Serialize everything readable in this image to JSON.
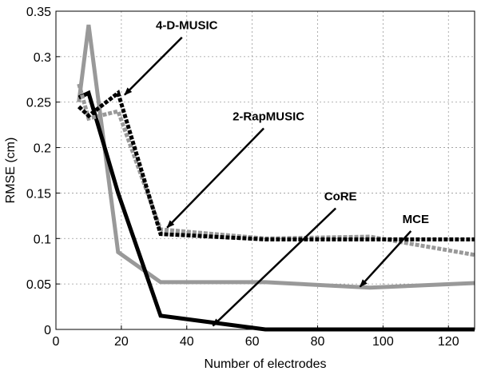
{
  "chart_data": {
    "type": "line",
    "xlabel": "Number of electrodes",
    "ylabel": "RMSE (cm)",
    "xlim": [
      0,
      128
    ],
    "ylim": [
      0,
      0.35
    ],
    "xticks": [
      0,
      20,
      40,
      60,
      80,
      100,
      120
    ],
    "yticks": [
      0,
      0.05,
      0.1,
      0.15,
      0.2,
      0.25,
      0.3,
      0.35
    ],
    "yticklabels": [
      "0",
      "0.05",
      "0.1",
      "0.15",
      "0.2",
      "0.25",
      "0.3",
      "0.35"
    ],
    "grid": true,
    "series": [
      {
        "name": "MCE",
        "color": "#999999",
        "style": "solid",
        "x": [
          7,
          10,
          19,
          32,
          64,
          96,
          128
        ],
        "y": [
          0.25,
          0.335,
          0.085,
          0.052,
          0.052,
          0.046,
          0.051
        ]
      },
      {
        "name": "CoRE",
        "color": "#000000",
        "style": "solid",
        "x": [
          7,
          10,
          19,
          32,
          64,
          96,
          128
        ],
        "y": [
          0.255,
          0.26,
          0.15,
          0.015,
          0.0,
          0.0,
          0.0
        ]
      },
      {
        "name": "2-RapMUSIC",
        "color": "#999999",
        "style": "dashed",
        "x": [
          7,
          10,
          19,
          32,
          64,
          96,
          128
        ],
        "y": [
          0.27,
          0.232,
          0.24,
          0.11,
          0.1,
          0.102,
          0.082
        ]
      },
      {
        "name": "4-D-MUSIC",
        "color": "#000000",
        "style": "dashed",
        "x": [
          7,
          10,
          19,
          32,
          64,
          96,
          128
        ],
        "y": [
          0.245,
          0.235,
          0.26,
          0.105,
          0.099,
          0.099,
          0.099
        ]
      }
    ],
    "annotations": [
      {
        "text": "4-D-MUSIC",
        "text_x": 40,
        "text_y": 0.33,
        "arrow_x": 21,
        "arrow_y": 0.258
      },
      {
        "text": "2-RapMUSIC",
        "text_x": 65,
        "text_y": 0.23,
        "arrow_x": 34,
        "arrow_y": 0.112
      },
      {
        "text": "CoRE",
        "text_x": 87,
        "text_y": 0.142,
        "arrow_x": 48,
        "arrow_y": 0.004
      },
      {
        "text": "MCE",
        "text_x": 110,
        "text_y": 0.117,
        "arrow_x": 93,
        "arrow_y": 0.047
      }
    ]
  }
}
